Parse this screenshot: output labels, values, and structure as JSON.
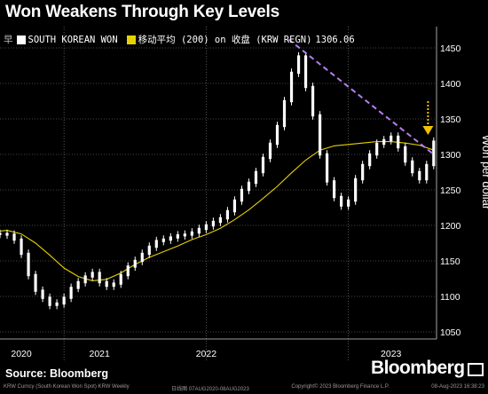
{
  "header": {
    "title": "Won Weakens Through Key Levels"
  },
  "legend": {
    "lead": "早",
    "won_label": "SOUTH KOREAN WON",
    "ma_label": "移动平均 (200)  on 收盘 (KRW REGN)",
    "ma_value": "1306.06"
  },
  "footer": {
    "source": "Source: Bloomberg",
    "brand": "Bloomberg",
    "fine_left": "KRW Curncy (South Korean Won Spot) KRW Weekly",
    "fine_mid1": "日线图 07AUG2020-08AUG2023",
    "fine_mid2": "Copyright© 2023 Bloomberg Finance L.P.",
    "fine_right": "08-Aug-2023 16:38:23"
  },
  "colors": {
    "background": "#000000",
    "price": "#ffffff",
    "moving_average": "#e6d200",
    "trendline": "#b77df0",
    "arrow": "#f2c200",
    "grid": "#8a8a8a"
  },
  "chart_data": {
    "type": "line",
    "title": "Won Weakens Through Key Levels",
    "ylabel": "Won per dollar",
    "ylim": [
      1040,
      1480
    ],
    "yticks": [
      1050,
      1100,
      1150,
      1200,
      1250,
      1300,
      1350,
      1400,
      1450
    ],
    "xlim": [
      2020.55,
      2023.62
    ],
    "xticks": [
      {
        "label": "2020",
        "x": 2020.7
      },
      {
        "label": "2021",
        "x": 2021.25
      },
      {
        "label": "2022",
        "x": 2022.0
      },
      {
        "label": "2023",
        "x": 2023.3
      }
    ],
    "year_boundaries": [
      2021.0,
      2022.0,
      2023.0
    ],
    "grid": true,
    "legend_position": "top-left",
    "series": [
      {
        "name": "SOUTH KOREAN WON",
        "style": "candles",
        "x": [
          2020.55,
          2020.6,
          2020.65,
          2020.7,
          2020.75,
          2020.8,
          2020.85,
          2020.9,
          2020.95,
          2021.0,
          2021.05,
          2021.1,
          2021.15,
          2021.2,
          2021.25,
          2021.3,
          2021.35,
          2021.4,
          2021.45,
          2021.5,
          2021.55,
          2021.6,
          2021.65,
          2021.7,
          2021.75,
          2021.8,
          2021.85,
          2021.9,
          2021.95,
          2022.0,
          2022.05,
          2022.1,
          2022.15,
          2022.2,
          2022.25,
          2022.3,
          2022.35,
          2022.4,
          2022.45,
          2022.5,
          2022.55,
          2022.6,
          2022.65,
          2022.7,
          2022.75,
          2022.8,
          2022.85,
          2022.9,
          2022.95,
          2023.0,
          2023.05,
          2023.1,
          2023.15,
          2023.2,
          2023.25,
          2023.3,
          2023.35,
          2023.4,
          2023.45,
          2023.5,
          2023.55,
          2023.6
        ],
        "values": [
          1188,
          1187,
          1180,
          1160,
          1130,
          1108,
          1098,
          1088,
          1090,
          1098,
          1112,
          1120,
          1128,
          1133,
          1120,
          1115,
          1118,
          1130,
          1142,
          1150,
          1160,
          1170,
          1178,
          1180,
          1183,
          1186,
          1187,
          1190,
          1195,
          1200,
          1205,
          1210,
          1220,
          1235,
          1250,
          1260,
          1275,
          1295,
          1315,
          1340,
          1375,
          1415,
          1438,
          1395,
          1355,
          1300,
          1262,
          1240,
          1228,
          1235,
          1265,
          1285,
          1300,
          1315,
          1320,
          1325,
          1310,
          1290,
          1275,
          1265,
          1285,
          1318
        ]
      },
      {
        "name": "移动平均 (200)  on 收盘 (KRW REGN)",
        "style": "line",
        "x": [
          2020.55,
          2020.6,
          2020.7,
          2020.8,
          2020.9,
          2021.0,
          2021.1,
          2021.2,
          2021.3,
          2021.4,
          2021.5,
          2021.6,
          2021.7,
          2021.8,
          2021.9,
          2022.0,
          2022.1,
          2022.2,
          2022.3,
          2022.4,
          2022.5,
          2022.6,
          2022.7,
          2022.8,
          2022.9,
          2023.0,
          2023.1,
          2023.2,
          2023.3,
          2023.4,
          2023.5,
          2023.6
        ],
        "values": [
          1192,
          1193,
          1188,
          1175,
          1158,
          1140,
          1128,
          1122,
          1124,
          1133,
          1145,
          1155,
          1163,
          1171,
          1180,
          1187,
          1196,
          1208,
          1222,
          1238,
          1255,
          1274,
          1292,
          1306,
          1312,
          1314,
          1316,
          1318,
          1318,
          1316,
          1313,
          1306
        ]
      }
    ],
    "annotations": [
      {
        "type": "trendline",
        "x": [
          2022.58,
          2023.6
        ],
        "y": [
          1462,
          1300
        ]
      },
      {
        "type": "arrow_down",
        "x": 2023.56,
        "y_from": 1375,
        "y_to": 1330
      }
    ]
  }
}
